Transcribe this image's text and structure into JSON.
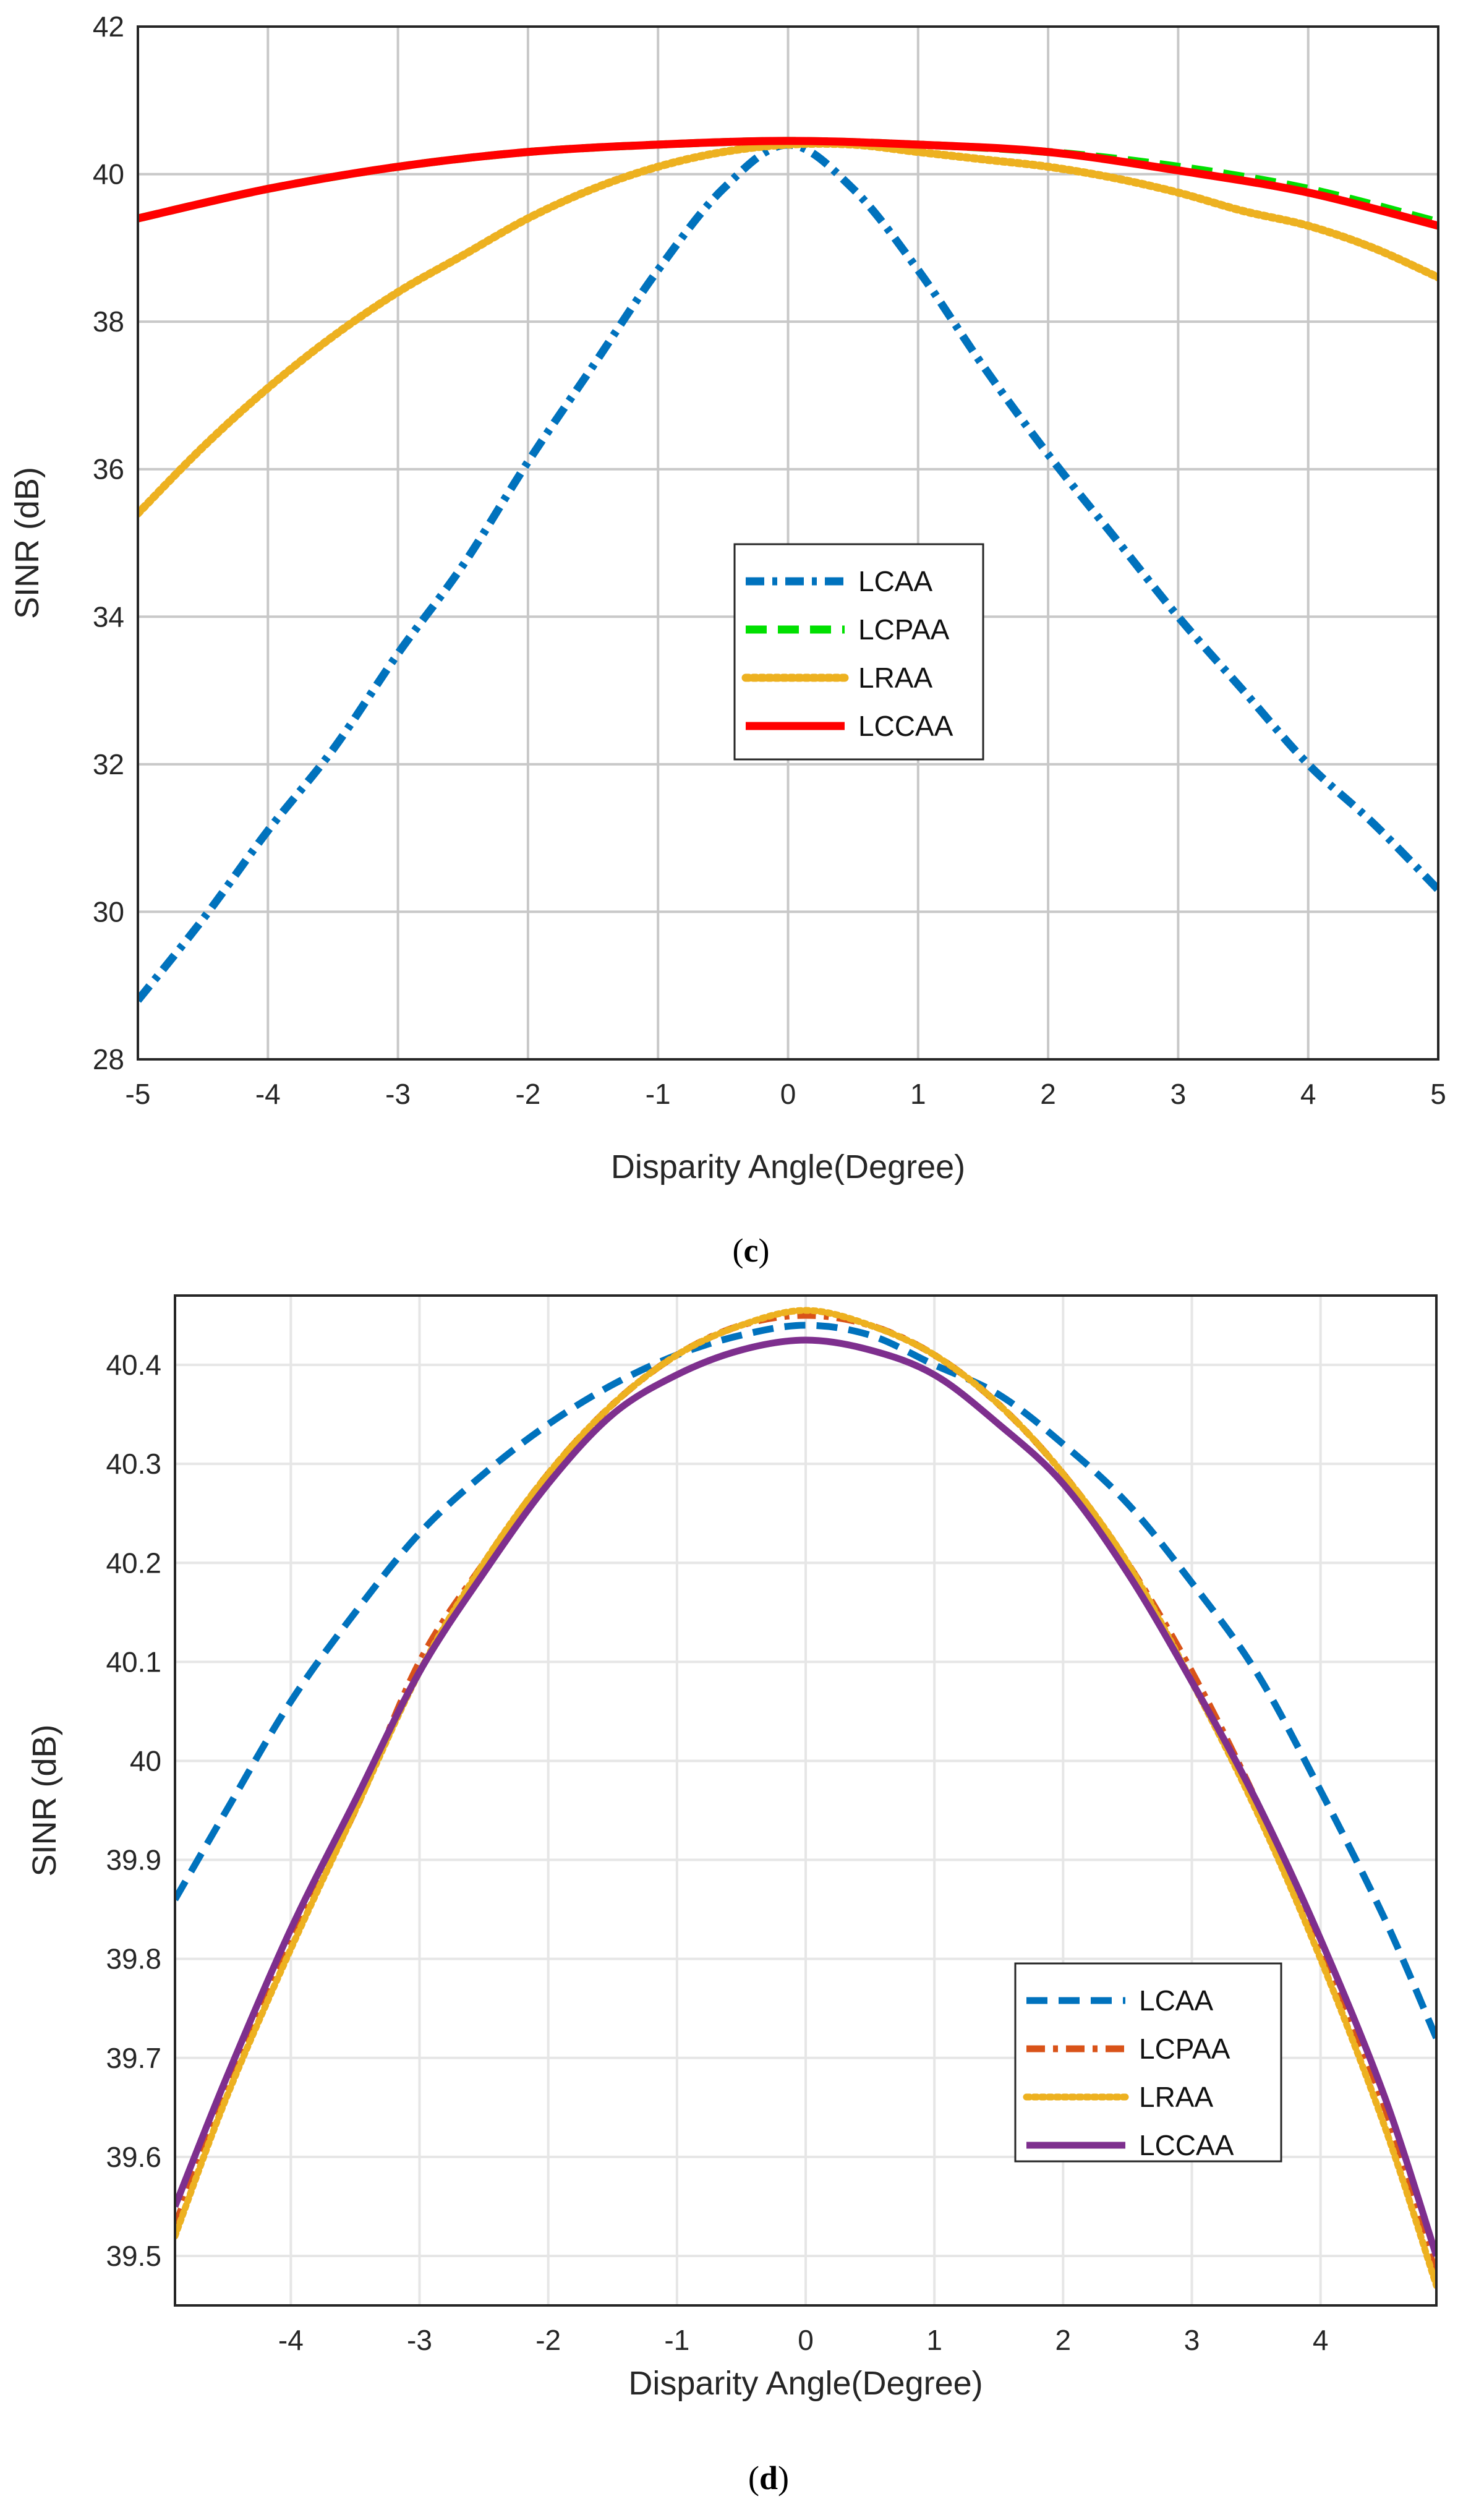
{
  "chart_data": [
    {
      "panel": "c",
      "type": "line",
      "caption": "(c)",
      "caption_letter": "c",
      "xlabel": "Disparity Angle(Degree)",
      "ylabel": "SINR (dB)",
      "xlim": [
        -5,
        5
      ],
      "ylim": [
        28,
        42
      ],
      "xticks": [
        -5,
        -4,
        -3,
        -2,
        -1,
        0,
        1,
        2,
        3,
        4,
        5
      ],
      "yticks": [
        28,
        30,
        32,
        34,
        36,
        38,
        40,
        42
      ],
      "grid": true,
      "legend_position": "center-right",
      "series": [
        {
          "name": "LCAA",
          "color": "#0072BD",
          "style": "dashdot",
          "x": [
            -5,
            -4.5,
            -4,
            -3.5,
            -3,
            -2.5,
            -2,
            -1.5,
            -1,
            -0.5,
            0,
            0.5,
            1,
            1.5,
            2,
            2.5,
            3,
            3.5,
            4,
            4.5,
            5
          ],
          "y": [
            28.8,
            29.9,
            31.1,
            32.2,
            33.5,
            34.7,
            36.1,
            37.4,
            38.7,
            39.8,
            40.4,
            39.8,
            38.7,
            37.4,
            36.2,
            35.1,
            34.0,
            33.0,
            32.0,
            31.2,
            30.3
          ]
        },
        {
          "name": "LCPAA",
          "color": "#00E000",
          "style": "dashed",
          "x": [
            -5,
            -4,
            -3,
            -2,
            -1,
            0,
            1,
            2,
            3,
            4,
            5
          ],
          "y": [
            39.4,
            39.8,
            40.1,
            40.3,
            40.4,
            40.45,
            40.4,
            40.3,
            40.1,
            39.8,
            39.35
          ]
        },
        {
          "name": "LRAA",
          "color": "#EDB120",
          "style": "dotted",
          "x": [
            -5,
            -4.5,
            -4,
            -3.5,
            -3,
            -2.5,
            -2,
            -1.5,
            -1,
            -0.5,
            0,
            0.5,
            1,
            1.5,
            2,
            2.5,
            3,
            3.5,
            4,
            4.5,
            5
          ],
          "y": [
            35.4,
            36.3,
            37.1,
            37.8,
            38.4,
            38.9,
            39.4,
            39.8,
            40.1,
            40.3,
            40.4,
            40.4,
            40.3,
            40.2,
            40.1,
            39.95,
            39.75,
            39.5,
            39.3,
            39.0,
            38.6
          ]
        },
        {
          "name": "LCCAA",
          "color": "#FF0000",
          "style": "solid",
          "x": [
            -5,
            -4,
            -3,
            -2,
            -1,
            0,
            1,
            2,
            3,
            4,
            5
          ],
          "y": [
            39.4,
            39.8,
            40.1,
            40.3,
            40.4,
            40.45,
            40.4,
            40.3,
            40.05,
            39.75,
            39.3
          ]
        }
      ]
    },
    {
      "panel": "d",
      "type": "line",
      "caption": "(d)",
      "caption_letter": "d",
      "xlabel": "Disparity Angle(Degree)",
      "ylabel": "SINR (dB)",
      "xlim": [
        -4.9,
        4.9
      ],
      "ylim": [
        39.45,
        40.47
      ],
      "xticks": [
        -4,
        -3,
        -2,
        -1,
        0,
        1,
        2,
        3,
        4
      ],
      "yticks": [
        39.5,
        39.6,
        39.7,
        39.8,
        39.9,
        40,
        40.1,
        40.2,
        40.3,
        40.4
      ],
      "ytick_labels": [
        "39.5",
        "39.6",
        "39.7",
        "39.8",
        "39.9",
        "40",
        "40.1",
        "40.2",
        "40.3",
        "40.4"
      ],
      "grid": true,
      "legend_position": "bottom-right",
      "series": [
        {
          "name": "LCAA",
          "color": "#0072BD",
          "style": "dashed",
          "x": [
            -4.9,
            -4.5,
            -4,
            -3.5,
            -3,
            -2.5,
            -2,
            -1.5,
            -1,
            -0.5,
            0,
            0.5,
            1,
            1.5,
            2,
            2.5,
            3,
            3.5,
            4,
            4.5,
            4.9
          ],
          "y": [
            39.86,
            39.95,
            40.06,
            40.15,
            40.23,
            40.29,
            40.34,
            40.38,
            40.41,
            40.43,
            40.44,
            40.43,
            40.4,
            40.37,
            40.32,
            40.26,
            40.18,
            40.09,
            39.97,
            39.84,
            39.72
          ]
        },
        {
          "name": "LCPAA",
          "color": "#D95319",
          "style": "dashdot",
          "x": [
            -4.9,
            -4.5,
            -4,
            -3.5,
            -3,
            -2.5,
            -2,
            -1.5,
            -1,
            -0.5,
            0,
            0.5,
            1,
            1.5,
            2,
            2.5,
            3,
            3.5,
            4,
            4.5,
            4.9
          ],
          "y": [
            39.53,
            39.67,
            39.82,
            39.95,
            40.1,
            40.2,
            40.29,
            40.36,
            40.41,
            40.44,
            40.45,
            40.44,
            40.41,
            40.36,
            40.29,
            40.2,
            40.09,
            39.96,
            39.81,
            39.65,
            39.48
          ]
        },
        {
          "name": "LRAA",
          "color": "#EDB120",
          "style": "dotted",
          "x": [
            -4.9,
            -4.5,
            -4,
            -3.5,
            -3,
            -2.5,
            -2,
            -1.5,
            -1,
            -0.5,
            0,
            0.5,
            1,
            1.5,
            2,
            2.5,
            3,
            3.5,
            4,
            4.5,
            4.9
          ],
          "y": [
            39.52,
            39.66,
            39.81,
            39.95,
            40.09,
            40.2,
            40.29,
            40.36,
            40.41,
            40.44,
            40.455,
            40.44,
            40.41,
            40.36,
            40.29,
            40.2,
            40.08,
            39.95,
            39.8,
            39.63,
            39.47
          ]
        },
        {
          "name": "LCCAA",
          "color": "#7E2F8E",
          "style": "solid",
          "x": [
            -4.9,
            -4.5,
            -4,
            -3.5,
            -3,
            -2.5,
            -2,
            -1.5,
            -1,
            -0.5,
            0,
            0.5,
            1,
            1.5,
            2,
            2.5,
            3,
            3.5,
            4,
            4.5,
            4.9
          ],
          "y": [
            39.55,
            39.68,
            39.83,
            39.96,
            40.09,
            40.19,
            40.28,
            40.35,
            40.39,
            40.415,
            40.425,
            40.415,
            40.39,
            40.34,
            40.28,
            40.19,
            40.08,
            39.96,
            39.82,
            39.66,
            39.5
          ]
        }
      ]
    }
  ]
}
